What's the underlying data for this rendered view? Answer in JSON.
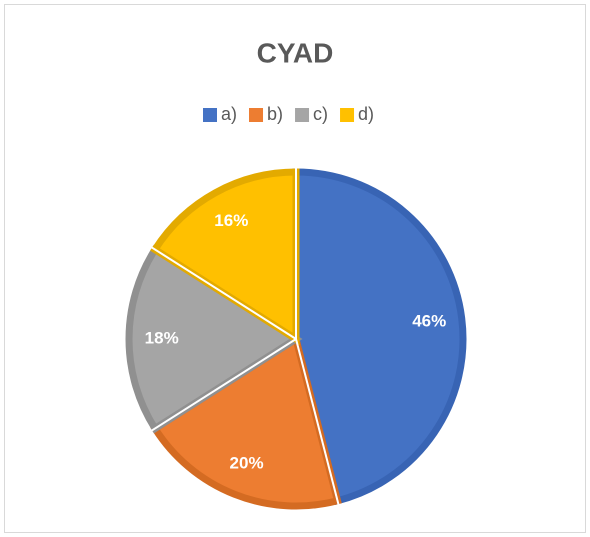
{
  "chart_data": {
    "type": "pie",
    "title": "CYAD",
    "categories": [
      "a)",
      "b)",
      "c)",
      "d)"
    ],
    "values": [
      46,
      20,
      18,
      16
    ],
    "value_labels": [
      "46%",
      "20%",
      "18%",
      "16%"
    ],
    "colors": [
      "#4472c4",
      "#ed7d31",
      "#a5a5a5",
      "#ffc000"
    ],
    "edge_colors": [
      "#3864b4",
      "#d46b22",
      "#909090",
      "#e3aa00"
    ],
    "legend": "top"
  }
}
